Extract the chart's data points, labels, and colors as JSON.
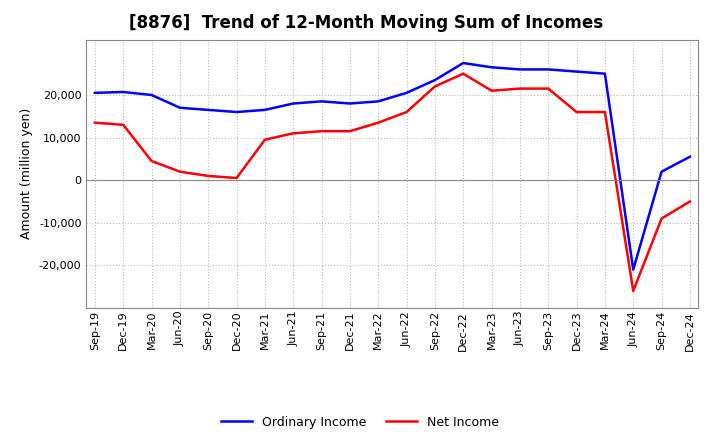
{
  "title": "[8876]  Trend of 12-Month Moving Sum of Incomes",
  "ylabel": "Amount (million yen)",
  "x_labels": [
    "Sep-19",
    "Dec-19",
    "Mar-20",
    "Jun-20",
    "Sep-20",
    "Dec-20",
    "Mar-21",
    "Jun-21",
    "Sep-21",
    "Dec-21",
    "Mar-22",
    "Jun-22",
    "Sep-22",
    "Dec-22",
    "Mar-23",
    "Jun-23",
    "Sep-23",
    "Dec-23",
    "Mar-24",
    "Jun-24",
    "Sep-24",
    "Dec-24"
  ],
  "ordinary_income": [
    20500,
    20700,
    20000,
    17000,
    16500,
    16000,
    16500,
    18000,
    18500,
    18000,
    18500,
    20500,
    23500,
    27500,
    26500,
    26000,
    26000,
    25500,
    25000,
    -21000,
    2000,
    5500
  ],
  "net_income": [
    13500,
    13000,
    4500,
    2000,
    1000,
    500,
    9500,
    11000,
    11500,
    11500,
    13500,
    16000,
    22000,
    25000,
    21000,
    21500,
    21500,
    16000,
    16000,
    -26000,
    -9000,
    -5000
  ],
  "ordinary_income_color": "#0000ff",
  "net_income_color": "#ff0000",
  "background_color": "#ffffff",
  "grid_color": "#bbbbbb",
  "ylim": [
    -30000,
    33000
  ],
  "yticks": [
    -20000,
    -10000,
    0,
    10000,
    20000
  ],
  "title_fontsize": 12,
  "axis_fontsize": 8,
  "ylabel_fontsize": 9,
  "line_width": 1.8
}
